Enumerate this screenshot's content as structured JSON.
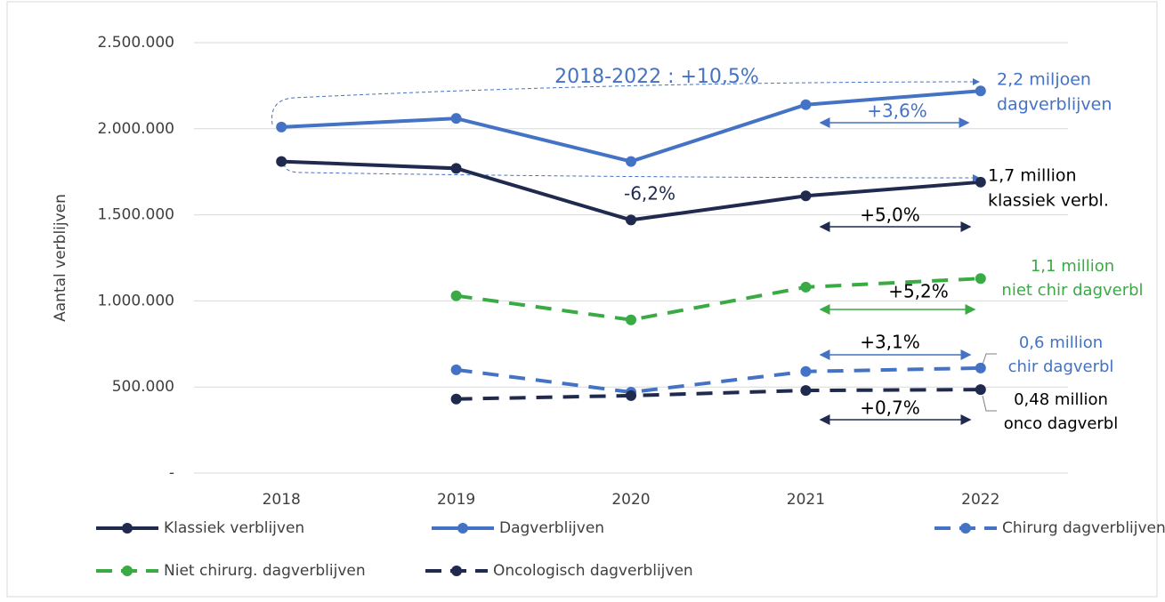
{
  "chart_data": {
    "type": "line",
    "y_label": "Aantal verblijven",
    "categories": [
      "2018",
      "2019",
      "2020",
      "2021",
      "2022"
    ],
    "series": [
      {
        "name": "Klassiek verblijven",
        "color": "#1f2a4e",
        "dashed": false,
        "values": [
          1810000,
          1770000,
          1470000,
          1610000,
          1690000
        ]
      },
      {
        "name": "Dagverblijven",
        "color": "#4472c4",
        "dashed": false,
        "values": [
          2010000,
          2060000,
          1810000,
          2140000,
          2220000
        ]
      },
      {
        "name": "Chirurg dagverblijven",
        "color": "#4472c4",
        "dashed": true,
        "values": [
          null,
          600000,
          470000,
          590000,
          610000
        ]
      },
      {
        "name": "Niet chirurg. dagverblijven",
        "color": "#3aaa45",
        "dashed": true,
        "values": [
          null,
          1030000,
          890000,
          1080000,
          1130000
        ]
      },
      {
        "name": "Oncologisch dagverblijven",
        "color": "#1f2a4e",
        "dashed": true,
        "values": [
          null,
          430000,
          450000,
          480000,
          485000
        ]
      }
    ],
    "ylim": [
      0,
      2500000
    ],
    "yticks": [
      {
        "value": 0,
        "label": "-"
      },
      {
        "value": 500000,
        "label": "500.000"
      },
      {
        "value": 1000000,
        "label": "1.000.000"
      },
      {
        "value": 1500000,
        "label": "1.500.000"
      },
      {
        "value": 2000000,
        "label": "2.000.000"
      },
      {
        "value": 2500000,
        "label": "2.500.000"
      }
    ],
    "grid": true,
    "annotations": [
      {
        "lines": [
          "2018-2022 : +10,5%"
        ],
        "color": "#4472c4"
      },
      {
        "lines": [
          "2,2 miljoen",
          "dagverblijven"
        ],
        "color": "#4472c4"
      },
      {
        "lines": [
          "+3,6%"
        ],
        "color": "#4472c4"
      },
      {
        "lines": [
          "-6,2%"
        ],
        "color": "#1f2a4e"
      },
      {
        "lines": [
          "1,7 million",
          "klassiek verbl."
        ],
        "color": "#000000"
      },
      {
        "lines": [
          "+5,0%"
        ],
        "color": "#000000"
      },
      {
        "lines": [
          "1,1 million",
          "niet chir dagverbl"
        ],
        "color": "#3aaa45"
      },
      {
        "lines": [
          "+5,2%"
        ],
        "color": "#000000"
      },
      {
        "lines": [
          "+3,1%"
        ],
        "color": "#000000"
      },
      {
        "lines": [
          "0,6 million",
          "chir dagverbl"
        ],
        "color": "#4472c4"
      },
      {
        "lines": [
          "0,48 million",
          "onco dagverbl"
        ],
        "color": "#000000"
      },
      {
        "lines": [
          "+0,7%"
        ],
        "color": "#000000"
      }
    ]
  }
}
